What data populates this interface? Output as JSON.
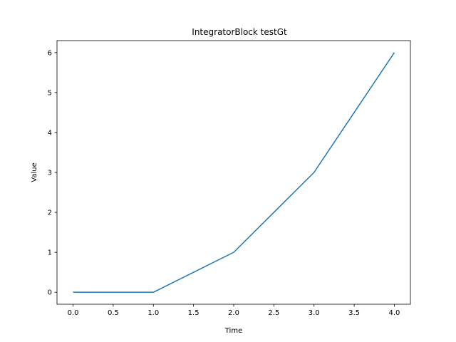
{
  "chart_data": {
    "type": "line",
    "title": "IntegratorBlock testGt",
    "xlabel": "Time",
    "ylabel": "Value",
    "xlim": [
      -0.2,
      4.2
    ],
    "ylim": [
      -0.3,
      6.3
    ],
    "xticks": [
      0.0,
      0.5,
      1.0,
      1.5,
      2.0,
      2.5,
      3.0,
      3.5,
      4.0
    ],
    "xtick_labels": [
      "0.0",
      "0.5",
      "1.0",
      "1.5",
      "2.0",
      "2.5",
      "3.0",
      "3.5",
      "4.0"
    ],
    "yticks": [
      0,
      1,
      2,
      3,
      4,
      5,
      6
    ],
    "ytick_labels": [
      "0",
      "1",
      "2",
      "3",
      "4",
      "5",
      "6"
    ],
    "grid": false,
    "legend": "none",
    "series": [
      {
        "color": "#1f77b4",
        "x": [
          0,
          1,
          2,
          3,
          4
        ],
        "y": [
          0,
          0,
          1,
          3,
          6
        ]
      }
    ]
  }
}
